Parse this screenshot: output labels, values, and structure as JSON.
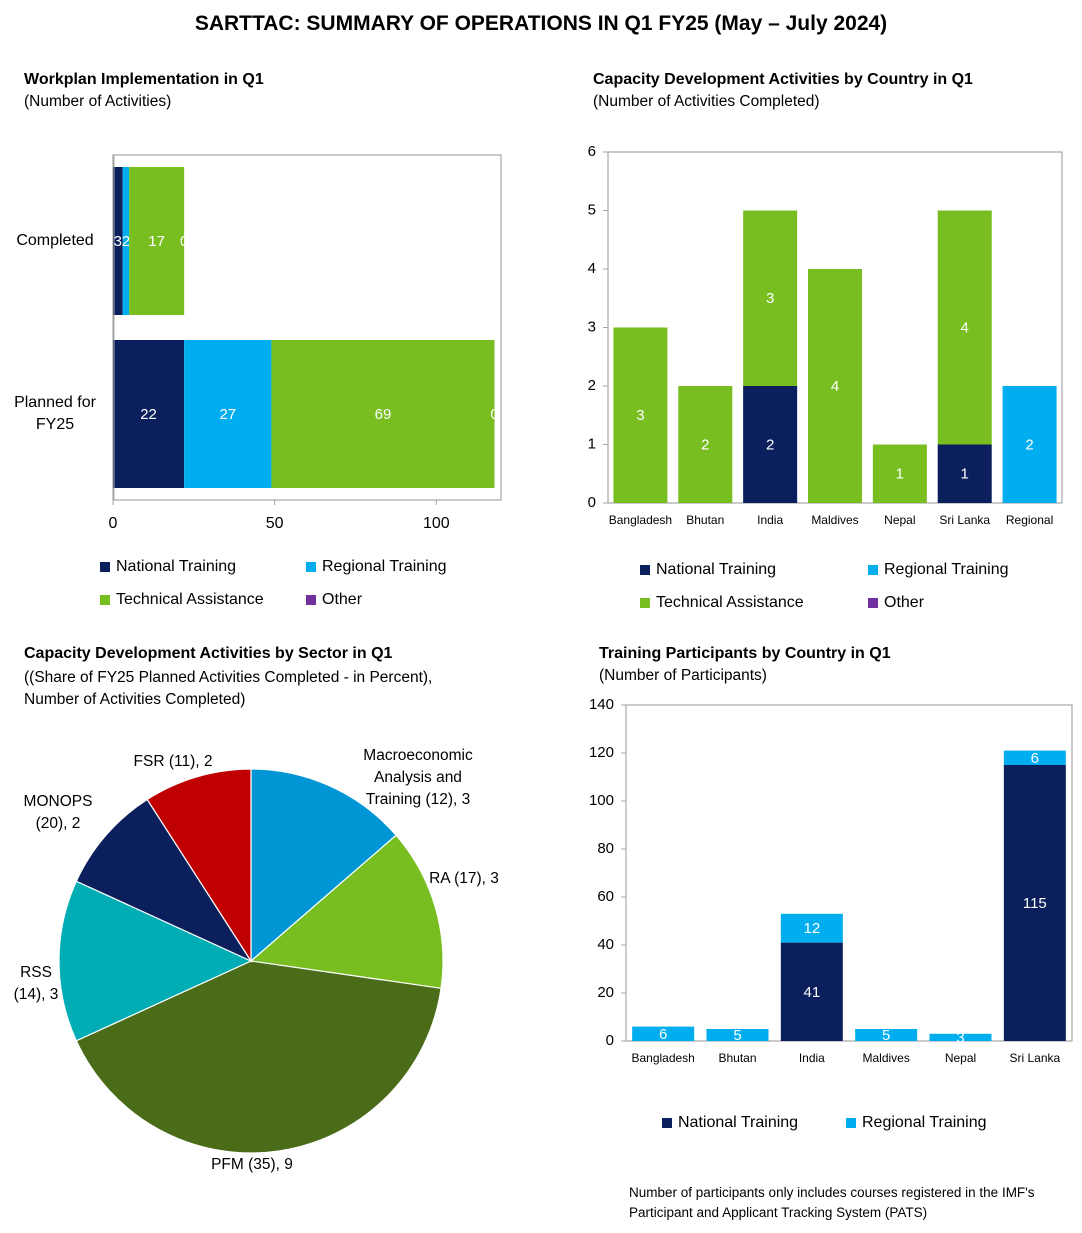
{
  "page_title": "SARTTAC: SUMMARY OF OPERATIONS IN Q1 FY25 (May – July 2024)",
  "colors": {
    "national_training": "#0a1f5c",
    "regional_training": "#00adef",
    "technical_assistance": "#78be21",
    "other": "#7030a0"
  },
  "footnote": "Number of participants only includes courses registered in the IMF's Participant and Applicant Tracking System (PATS)",
  "chart_data": [
    {
      "id": "workplan",
      "type": "bar",
      "orientation": "horizontal",
      "stacked": true,
      "title": "Workplan Implementation in Q1",
      "subtitle": "(Number of Activities)",
      "categories": [
        "Completed",
        "Planned for FY25"
      ],
      "category_display": [
        [
          "Completed"
        ],
        [
          "Planned for",
          "FY25"
        ]
      ],
      "series": [
        {
          "name": "National Training",
          "values": [
            3,
            22
          ],
          "color": "#0a1f5c"
        },
        {
          "name": "Regional Training",
          "values": [
            2,
            27
          ],
          "color": "#00adef"
        },
        {
          "name": "Technical Assistance",
          "values": [
            17,
            69
          ],
          "color": "#78be21"
        },
        {
          "name": "Other",
          "values": [
            0,
            0
          ],
          "color": "#7030a0"
        }
      ],
      "xlim": [
        0,
        120
      ],
      "xticks": [
        0,
        50,
        100
      ],
      "legend": "bottom"
    },
    {
      "id": "cd_country",
      "type": "bar",
      "stacked": true,
      "title": "Capacity Development Activities by Country  in Q1",
      "subtitle": "(Number of Activities Completed)",
      "categories": [
        "Bangladesh",
        "Bhutan",
        "India",
        "Maldives",
        "Nepal",
        "Sri Lanka",
        "Regional"
      ],
      "series": [
        {
          "name": "National Training",
          "values": [
            0,
            0,
            2,
            0,
            0,
            1,
            0
          ],
          "color": "#0a1f5c"
        },
        {
          "name": "Regional Training",
          "values": [
            0,
            0,
            0,
            0,
            0,
            0,
            2
          ],
          "color": "#00adef"
        },
        {
          "name": "Technical Assistance",
          "values": [
            3,
            2,
            3,
            4,
            1,
            4,
            0
          ],
          "color": "#78be21"
        },
        {
          "name": "Other",
          "values": [
            0,
            0,
            0,
            0,
            0,
            0,
            0
          ],
          "color": "#7030a0"
        }
      ],
      "ylim": [
        0,
        6
      ],
      "yticks": [
        0,
        1,
        2,
        3,
        4,
        5,
        6
      ],
      "legend": "bottom"
    },
    {
      "id": "cd_sector",
      "type": "pie",
      "title": "Capacity Development Activities by Sector in Q1",
      "subtitle": "((Share of FY25 Planned Activities Completed - in Percent), Number of Activities Completed)",
      "slices": [
        {
          "label": "Macroeconomic Analysis and Training (12), 3",
          "label_lines": [
            "Macroeconomic",
            "Analysis and",
            "Training (12), 3"
          ],
          "value": 3,
          "color": "#0096d6"
        },
        {
          "label": "RA (17), 3",
          "label_lines": [
            "RA (17), 3"
          ],
          "value": 3,
          "color": "#78be21"
        },
        {
          "label": "PFM (35), 9",
          "label_lines": [
            "PFM (35), 9"
          ],
          "value": 9,
          "color": "#4a6b17"
        },
        {
          "label": "RSS (14), 3",
          "label_lines": [
            "RSS",
            "(14), 3"
          ],
          "value": 3,
          "color": "#00adb5"
        },
        {
          "label": "MONOPS (20), 2",
          "label_lines": [
            "MONOPS",
            "(20), 2"
          ],
          "value": 2,
          "color": "#0a1f5c"
        },
        {
          "label": "FSR (11), 2",
          "label_lines": [
            "FSR (11), 2"
          ],
          "value": 2,
          "color": "#c00000"
        }
      ]
    },
    {
      "id": "participants",
      "type": "bar",
      "stacked": true,
      "title": "Training Participants by Country in Q1",
      "subtitle": "(Number of Participants)",
      "categories": [
        "Bangladesh",
        "Bhutan",
        "India",
        "Maldives",
        "Nepal",
        "Sri Lanka"
      ],
      "series": [
        {
          "name": "National Training",
          "values": [
            0,
            0,
            41,
            0,
            0,
            115
          ],
          "color": "#0a1f5c"
        },
        {
          "name": "Regional Training",
          "values": [
            6,
            5,
            12,
            5,
            3,
            6
          ],
          "color": "#00adef"
        }
      ],
      "ylim": [
        0,
        140
      ],
      "yticks": [
        0,
        20,
        40,
        60,
        80,
        100,
        120,
        140
      ],
      "legend": "bottom"
    }
  ]
}
